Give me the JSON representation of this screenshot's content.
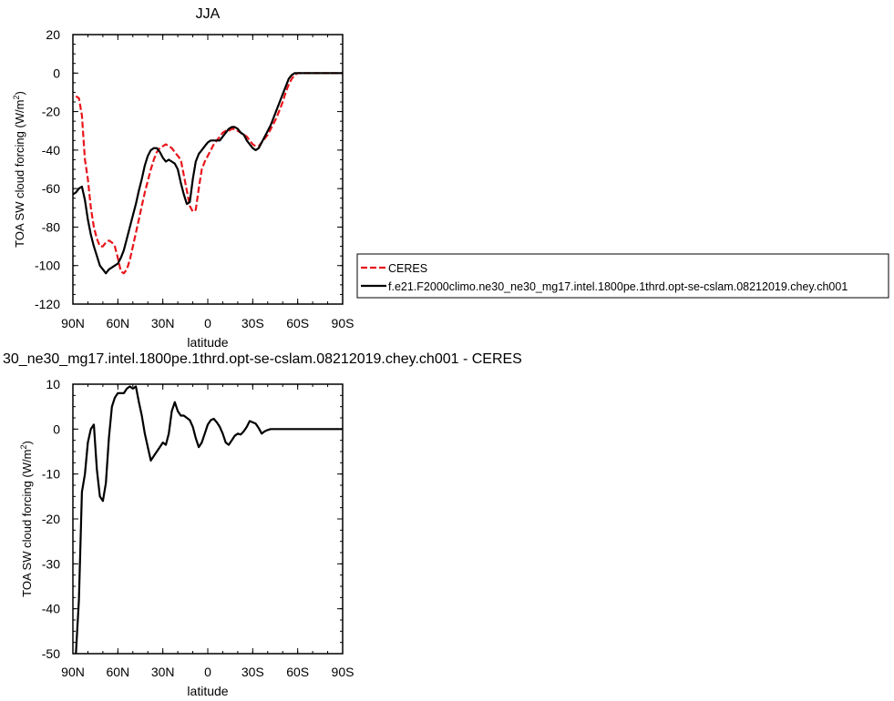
{
  "chart_data": [
    {
      "type": "line",
      "title": "JJA",
      "xlabel": "latitude",
      "ylabel": "TOA SW cloud forcing (W/m",
      "ylabel_sup": "2",
      "ylabel_close": ")",
      "xlim": [
        90,
        -90
      ],
      "ylim": [
        -120,
        20
      ],
      "xticks": [
        {
          "value": 90,
          "label": "90N"
        },
        {
          "value": 60,
          "label": "60N"
        },
        {
          "value": 30,
          "label": "30N"
        },
        {
          "value": 0,
          "label": "0"
        },
        {
          "value": -30,
          "label": "30S"
        },
        {
          "value": -60,
          "label": "60S"
        },
        {
          "value": -90,
          "label": "90S"
        }
      ],
      "yticks": [
        20,
        0,
        -20,
        -40,
        -60,
        -80,
        -100,
        -120
      ],
      "legend_position": "right",
      "series": [
        {
          "name": "CERES",
          "color": "#e8151b",
          "dash": true,
          "x": [
            88,
            86,
            84,
            82,
            80,
            78,
            76,
            74,
            72,
            70,
            68,
            66,
            64,
            62,
            60,
            58,
            56,
            54,
            52,
            50,
            48,
            46,
            44,
            42,
            40,
            38,
            36,
            34,
            32,
            30,
            28,
            26,
            24,
            22,
            20,
            18,
            16,
            14,
            12,
            10,
            8,
            6,
            4,
            2,
            0,
            -2,
            -4,
            -6,
            -8,
            -10,
            -12,
            -14,
            -16,
            -18,
            -20,
            -22,
            -24,
            -26,
            -28,
            -30,
            -32,
            -34,
            -36,
            -38,
            -40,
            -42,
            -44,
            -46,
            -48,
            -50,
            -52,
            -54,
            -56,
            -58,
            -60,
            -62,
            -64,
            -66,
            -68,
            -70,
            -72,
            -74,
            -76,
            -78,
            -80,
            -82,
            -84,
            -86,
            -88,
            -90
          ],
          "y": [
            -12,
            -13,
            -22,
            -45,
            -55,
            -70,
            -80,
            -86,
            -90,
            -90,
            -88,
            -87,
            -88,
            -90,
            -96,
            -103,
            -104,
            -102,
            -97,
            -90,
            -83,
            -76,
            -69,
            -62,
            -56,
            -50,
            -45,
            -41,
            -39,
            -38,
            -37,
            -38,
            -39,
            -41,
            -43,
            -45,
            -53,
            -61,
            -69,
            -72,
            -71,
            -60,
            -50,
            -46,
            -43,
            -40,
            -37,
            -35,
            -33,
            -31,
            -30,
            -30,
            -29,
            -29,
            -30,
            -31,
            -32,
            -33,
            -35,
            -37,
            -38,
            -38,
            -36,
            -34,
            -32,
            -29,
            -26,
            -23,
            -19,
            -15,
            -10,
            -6,
            -3,
            -1,
            0,
            0,
            0,
            0,
            0,
            0,
            0,
            0,
            0,
            0,
            0,
            0,
            0,
            0,
            0,
            0
          ]
        },
        {
          "name": "f.e21.F2000climo.ne30_ne30_mg17.intel.1800pe.1thrd.opt-se-cslam.08212019.chey.ch001",
          "color": "#000000",
          "dash": false,
          "x": [
            90,
            88,
            86,
            84,
            82,
            80,
            78,
            76,
            74,
            72,
            70,
            68,
            66,
            64,
            62,
            60,
            58,
            56,
            54,
            52,
            50,
            48,
            46,
            44,
            42,
            40,
            38,
            36,
            34,
            32,
            30,
            28,
            26,
            24,
            22,
            20,
            18,
            16,
            14,
            12,
            10,
            8,
            6,
            4,
            2,
            0,
            -2,
            -4,
            -6,
            -8,
            -10,
            -12,
            -14,
            -16,
            -18,
            -20,
            -22,
            -24,
            -26,
            -28,
            -30,
            -32,
            -34,
            -36,
            -38,
            -40,
            -42,
            -44,
            -46,
            -48,
            -50,
            -52,
            -54,
            -56,
            -58,
            -60,
            -62,
            -64,
            -66,
            -68,
            -70,
            -72,
            -74,
            -76,
            -78,
            -80,
            -82,
            -84,
            -86,
            -88,
            -90
          ],
          "y": [
            -63,
            -62,
            -60,
            -59,
            -66,
            -76,
            -84,
            -90,
            -95,
            -100,
            -102,
            -104,
            -102,
            -101,
            -100,
            -99,
            -96,
            -92,
            -86,
            -80,
            -74,
            -68,
            -61,
            -55,
            -48,
            -43,
            -40,
            -39,
            -39,
            -41,
            -44,
            -46,
            -45,
            -46,
            -47,
            -50,
            -57,
            -63,
            -68,
            -67,
            -55,
            -46,
            -42,
            -40,
            -38,
            -36,
            -35,
            -35,
            -35,
            -35,
            -33,
            -31,
            -29,
            -28,
            -28,
            -29,
            -31,
            -32,
            -35,
            -37,
            -39,
            -40,
            -39,
            -36,
            -33,
            -30,
            -27,
            -23,
            -19,
            -15,
            -11,
            -7,
            -3,
            -1,
            0,
            0,
            0,
            0,
            0,
            0,
            0,
            0,
            0,
            0,
            0,
            0,
            0,
            0,
            0,
            0,
            0
          ]
        }
      ]
    },
    {
      "type": "line",
      "title": "30_ne30_mg17.intel.1800pe.1thrd.opt-se-cslam.08212019.chey.ch001 - CERES",
      "xlabel": "latitude",
      "ylabel": "TOA SW cloud forcing (W/m",
      "ylabel_sup": "2",
      "ylabel_close": ")",
      "xlim": [
        90,
        -90
      ],
      "ylim": [
        -50,
        10
      ],
      "xticks": [
        {
          "value": 90,
          "label": "90N"
        },
        {
          "value": 60,
          "label": "60N"
        },
        {
          "value": 30,
          "label": "30N"
        },
        {
          "value": 0,
          "label": "0"
        },
        {
          "value": -30,
          "label": "30S"
        },
        {
          "value": -60,
          "label": "60S"
        },
        {
          "value": -90,
          "label": "90S"
        }
      ],
      "yticks": [
        10,
        0,
        -10,
        -20,
        -30,
        -40,
        -50
      ],
      "series": [
        {
          "color": "#000000",
          "dash": false,
          "x": [
            88,
            86,
            84,
            82,
            80,
            78,
            76,
            74,
            72,
            70,
            68,
            66,
            64,
            62,
            60,
            58,
            56,
            54,
            52,
            50,
            48,
            46,
            44,
            42,
            40,
            38,
            36,
            34,
            32,
            30,
            28,
            26,
            24,
            22,
            20,
            18,
            16,
            14,
            12,
            10,
            8,
            6,
            4,
            2,
            0,
            -2,
            -4,
            -6,
            -8,
            -10,
            -12,
            -14,
            -16,
            -18,
            -20,
            -22,
            -24,
            -26,
            -28,
            -30,
            -32,
            -34,
            -36,
            -38,
            -40,
            -42,
            -44,
            -46,
            -48,
            -50,
            -52,
            -54,
            -56,
            -58,
            -60,
            -62,
            -64,
            -66,
            -68,
            -70,
            -72,
            -74,
            -76,
            -78,
            -80,
            -82,
            -84,
            -86,
            -88,
            -90
          ],
          "y": [
            -50,
            -38,
            -14,
            -10,
            -3,
            0,
            1,
            -9,
            -15,
            -16,
            -12,
            -2,
            5,
            7,
            8,
            8,
            8,
            9,
            9.5,
            9,
            9.5,
            6,
            3,
            -1,
            -4,
            -7,
            -6,
            -5,
            -4,
            -3,
            -3.5,
            -1,
            4,
            6,
            4,
            3,
            3,
            2.5,
            2,
            0.5,
            -2,
            -4,
            -3,
            -1,
            1,
            2,
            2.3,
            1.5,
            0.5,
            -1,
            -3,
            -3.5,
            -2.5,
            -1.5,
            -1,
            -1.2,
            -0.5,
            0.5,
            1.8,
            1.5,
            1.2,
            0.2,
            -1,
            -0.5,
            -0.2,
            0,
            0,
            0,
            0,
            0,
            0,
            0,
            0,
            0,
            0,
            0,
            0,
            0,
            0,
            0,
            0,
            0,
            0,
            0,
            0,
            0,
            0,
            0,
            0,
            0
          ]
        }
      ]
    }
  ]
}
